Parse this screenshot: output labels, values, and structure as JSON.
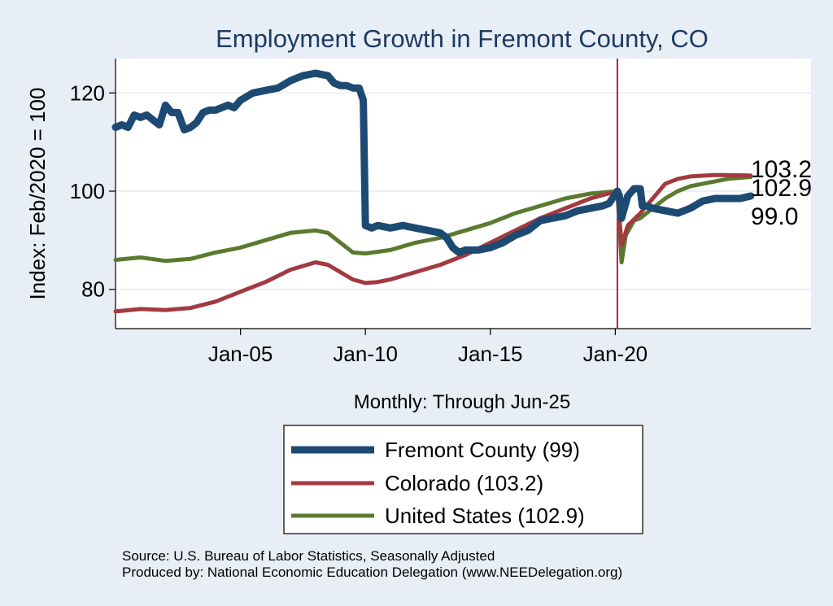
{
  "chart_data": {
    "type": "line",
    "title": "Employment Growth in Fremont  County, CO",
    "ylabel": "Index: Feb/2020 = 100",
    "xnote": "Monthly: Through Jun-25",
    "ylim": [
      72,
      127
    ],
    "xlim": [
      "2000-01",
      "2027-11"
    ],
    "yticks": [
      80,
      100,
      120
    ],
    "xticks": [
      {
        "date": "2005-01",
        "label": "Jan-05"
      },
      {
        "date": "2010-01",
        "label": "Jan-10"
      },
      {
        "date": "2015-01",
        "label": "Jan-15"
      },
      {
        "date": "2020-01",
        "label": "Jan-20"
      }
    ],
    "vline": "2020-02",
    "grid": "horizontal",
    "legend_position": "bottom",
    "series": [
      {
        "name": "Fremont  County (99)",
        "color": "#1d4a73",
        "end_label": "99.0",
        "points": [
          [
            "2000-01",
            113.0
          ],
          [
            "2000-04",
            113.5
          ],
          [
            "2000-07",
            113.0
          ],
          [
            "2000-10",
            115.5
          ],
          [
            "2001-01",
            115.0
          ],
          [
            "2001-04",
            115.5
          ],
          [
            "2001-07",
            114.5
          ],
          [
            "2001-10",
            113.5
          ],
          [
            "2002-01",
            117.5
          ],
          [
            "2002-04",
            116.0
          ],
          [
            "2002-07",
            116.0
          ],
          [
            "2002-10",
            112.5
          ],
          [
            "2003-01",
            113.0
          ],
          [
            "2003-04",
            114.0
          ],
          [
            "2003-07",
            116.0
          ],
          [
            "2003-10",
            116.5
          ],
          [
            "2004-01",
            116.5
          ],
          [
            "2004-07",
            117.5
          ],
          [
            "2004-10",
            117.0
          ],
          [
            "2005-01",
            118.5
          ],
          [
            "2005-07",
            120.0
          ],
          [
            "2006-01",
            120.5
          ],
          [
            "2006-07",
            121.0
          ],
          [
            "2007-01",
            122.5
          ],
          [
            "2007-07",
            123.5
          ],
          [
            "2008-01",
            124.0
          ],
          [
            "2008-07",
            123.5
          ],
          [
            "2008-10",
            122.0
          ],
          [
            "2009-01",
            121.5
          ],
          [
            "2009-04",
            121.5
          ],
          [
            "2009-07",
            121.0
          ],
          [
            "2009-10",
            121.0
          ],
          [
            "2009-12",
            118.5
          ],
          [
            "2010-01",
            93.0
          ],
          [
            "2010-04",
            92.5
          ],
          [
            "2010-07",
            93.0
          ],
          [
            "2011-01",
            92.5
          ],
          [
            "2011-07",
            93.0
          ],
          [
            "2012-01",
            92.5
          ],
          [
            "2012-07",
            92.0
          ],
          [
            "2013-01",
            91.5
          ],
          [
            "2013-04",
            90.5
          ],
          [
            "2013-07",
            88.5
          ],
          [
            "2013-10",
            87.5
          ],
          [
            "2014-01",
            88.0
          ],
          [
            "2014-07",
            88.0
          ],
          [
            "2015-01",
            88.5
          ],
          [
            "2015-07",
            89.5
          ],
          [
            "2016-01",
            91.0
          ],
          [
            "2016-07",
            92.0
          ],
          [
            "2017-01",
            94.0
          ],
          [
            "2017-07",
            94.5
          ],
          [
            "2018-01",
            95.0
          ],
          [
            "2018-07",
            96.0
          ],
          [
            "2019-01",
            96.5
          ],
          [
            "2019-07",
            97.0
          ],
          [
            "2019-10",
            97.5
          ],
          [
            "2020-02",
            100.0
          ],
          [
            "2020-03",
            99.0
          ],
          [
            "2020-04",
            94.5
          ],
          [
            "2020-05",
            96.0
          ],
          [
            "2020-07",
            99.0
          ],
          [
            "2020-10",
            100.5
          ],
          [
            "2021-01",
            100.5
          ],
          [
            "2021-02",
            97.0
          ],
          [
            "2021-04",
            97.0
          ],
          [
            "2021-07",
            96.5
          ],
          [
            "2022-01",
            96.0
          ],
          [
            "2022-07",
            95.5
          ],
          [
            "2023-01",
            96.5
          ],
          [
            "2023-07",
            98.0
          ],
          [
            "2024-01",
            98.5
          ],
          [
            "2024-07",
            98.5
          ],
          [
            "2025-01",
            98.5
          ],
          [
            "2025-06",
            99.0
          ]
        ]
      },
      {
        "name": "Colorado (103.2)",
        "color": "#a33a40",
        "end_label": "103.2",
        "points": [
          [
            "2000-01",
            75.5
          ],
          [
            "2001-01",
            76.0
          ],
          [
            "2002-01",
            75.8
          ],
          [
            "2003-01",
            76.2
          ],
          [
            "2004-01",
            77.5
          ],
          [
            "2005-01",
            79.5
          ],
          [
            "2006-01",
            81.5
          ],
          [
            "2007-01",
            84.0
          ],
          [
            "2008-01",
            85.5
          ],
          [
            "2008-07",
            85.0
          ],
          [
            "2009-01",
            83.5
          ],
          [
            "2009-07",
            82.0
          ],
          [
            "2010-01",
            81.3
          ],
          [
            "2010-07",
            81.5
          ],
          [
            "2011-01",
            82.0
          ],
          [
            "2012-01",
            83.5
          ],
          [
            "2013-01",
            85.0
          ],
          [
            "2014-01",
            87.0
          ],
          [
            "2015-01",
            89.5
          ],
          [
            "2016-01",
            92.0
          ],
          [
            "2017-01",
            94.5
          ],
          [
            "2018-01",
            96.5
          ],
          [
            "2019-01",
            98.5
          ],
          [
            "2020-02",
            100.0
          ],
          [
            "2020-04",
            89.0
          ],
          [
            "2020-07",
            93.0
          ],
          [
            "2021-01",
            95.5
          ],
          [
            "2021-07",
            98.5
          ],
          [
            "2022-01",
            101.5
          ],
          [
            "2022-07",
            102.5
          ],
          [
            "2023-01",
            103.0
          ],
          [
            "2024-01",
            103.3
          ],
          [
            "2025-06",
            103.2
          ]
        ]
      },
      {
        "name": "United States (102.9)",
        "color": "#5a7a2e",
        "end_label": "102.9",
        "points": [
          [
            "2000-01",
            86.0
          ],
          [
            "2001-01",
            86.5
          ],
          [
            "2002-01",
            85.8
          ],
          [
            "2003-01",
            86.2
          ],
          [
            "2004-01",
            87.5
          ],
          [
            "2005-01",
            88.5
          ],
          [
            "2006-01",
            90.0
          ],
          [
            "2007-01",
            91.5
          ],
          [
            "2008-01",
            92.0
          ],
          [
            "2008-07",
            91.5
          ],
          [
            "2009-01",
            89.5
          ],
          [
            "2009-07",
            87.5
          ],
          [
            "2010-01",
            87.3
          ],
          [
            "2011-01",
            88.0
          ],
          [
            "2012-01",
            89.5
          ],
          [
            "2013-01",
            90.5
          ],
          [
            "2014-01",
            92.0
          ],
          [
            "2015-01",
            93.5
          ],
          [
            "2016-01",
            95.5
          ],
          [
            "2017-01",
            97.0
          ],
          [
            "2018-01",
            98.5
          ],
          [
            "2019-01",
            99.5
          ],
          [
            "2020-02",
            100.0
          ],
          [
            "2020-04",
            85.5
          ],
          [
            "2020-06",
            91.0
          ],
          [
            "2020-10",
            94.0
          ],
          [
            "2021-01",
            94.5
          ],
          [
            "2021-07",
            96.5
          ],
          [
            "2022-01",
            98.5
          ],
          [
            "2022-07",
            100.0
          ],
          [
            "2023-01",
            101.0
          ],
          [
            "2023-07",
            101.5
          ],
          [
            "2024-01",
            102.0
          ],
          [
            "2024-07",
            102.5
          ],
          [
            "2025-06",
            102.9
          ]
        ]
      }
    ],
    "source": "Source: U.S. Bureau of Labor Statistics, Seasonally Adjusted",
    "producer": "Produced by: National Economic Education Delegation (www.NEEDelegation.org)"
  }
}
